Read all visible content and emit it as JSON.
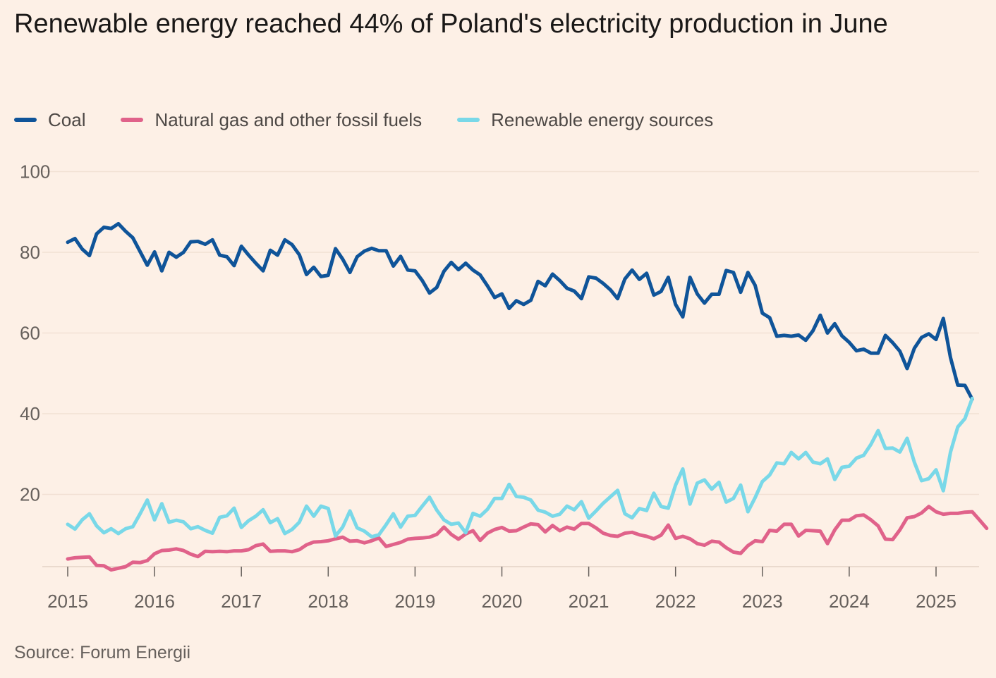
{
  "title": "Renewable energy reached 44% of Poland's electricity production in June",
  "source": "Source: Forum Energii",
  "colors": {
    "coal": "#0f5499",
    "gas": "#e0628a",
    "renewables": "#79d8e8",
    "background": "#fdf0e6",
    "grid": "#f2e1d4"
  },
  "chart_data": {
    "type": "line",
    "title": "Renewable energy reached 44% of Poland's electricity production in June",
    "xlabel": "",
    "ylabel": "",
    "x_start": "2015-01",
    "x_end": "2025-06",
    "frequency": "monthly",
    "xticks": [
      "2015",
      "2016",
      "2017",
      "2018",
      "2019",
      "2020",
      "2021",
      "2022",
      "2023",
      "2024",
      "2025"
    ],
    "yticks": [
      "20",
      "40",
      "60",
      "80",
      "100"
    ],
    "ylim": [
      0,
      100
    ],
    "grid": true,
    "legend_position": "top-left",
    "series": [
      {
        "name": "Coal",
        "color": "#0f5499",
        "values": [
          82.5,
          83.4,
          80.8,
          79.2,
          84.6,
          86.2,
          85.9,
          87.1,
          85.2,
          83.6,
          80.2,
          76.8,
          80.1,
          75.4,
          80.0,
          78.8,
          80.0,
          82.6,
          82.7,
          82.0,
          83.1,
          79.3,
          78.9,
          76.7,
          81.5,
          79.3,
          77.3,
          75.4,
          80.5,
          79.3,
          83.1,
          81.9,
          79.4,
          74.5,
          76.3,
          74.0,
          74.3,
          80.9,
          78.3,
          75.0,
          78.9,
          80.3,
          81.0,
          80.4,
          80.4,
          76.6,
          79.0,
          75.6,
          75.4,
          73.0,
          69.9,
          71.3,
          75.3,
          77.5,
          75.7,
          77.3,
          75.6,
          74.4,
          71.7,
          68.8,
          69.7,
          66.1,
          68.0,
          67.1,
          68.1,
          72.8,
          71.7,
          74.6,
          73.0,
          71.1,
          70.4,
          68.5,
          73.9,
          73.6,
          72.3,
          70.7,
          68.5,
          73.4,
          75.6,
          73.3,
          74.8,
          69.4,
          70.3,
          73.8,
          67.1,
          64.0,
          73.8,
          69.7,
          67.4,
          69.6,
          69.6,
          75.5,
          75.0,
          70.1,
          75.0,
          71.8,
          64.9,
          63.8,
          59.2,
          59.4,
          59.2,
          59.5,
          58.2,
          60.6,
          64.4,
          60.0,
          62.3,
          59.3,
          57.7,
          55.6,
          56.0,
          55.0,
          55.0,
          59.4,
          57.6,
          55.5,
          51.2,
          56.2,
          58.9,
          59.8,
          58.4,
          63.6,
          53.9,
          47.1,
          47.0,
          43.6
        ]
      },
      {
        "name": "Natural gas and other fossil fuels",
        "color": "#e0628a",
        "values": [
          4.0,
          4.3,
          4.4,
          4.5,
          2.4,
          2.3,
          1.3,
          1.7,
          2.1,
          3.2,
          3.1,
          3.6,
          5.3,
          6.1,
          6.2,
          6.5,
          6.1,
          5.2,
          4.6,
          5.9,
          5.8,
          5.9,
          5.8,
          6.0,
          6.0,
          6.3,
          7.3,
          7.7,
          5.9,
          6.0,
          6.0,
          5.8,
          6.3,
          7.5,
          8.2,
          8.3,
          8.5,
          9.0,
          9.4,
          8.4,
          8.5,
          8.0,
          8.5,
          9.2,
          7.1,
          7.6,
          8.1,
          8.9,
          9.1,
          9.2,
          9.4,
          10.1,
          11.9,
          10.1,
          8.9,
          10.2,
          11.0,
          8.6,
          10.4,
          11.3,
          11.8,
          10.9,
          11.0,
          11.9,
          12.7,
          12.5,
          10.7,
          12.3,
          11.0,
          11.9,
          11.4,
          12.8,
          12.8,
          11.7,
          10.4,
          9.8,
          9.6,
          10.4,
          10.6,
          10.0,
          9.6,
          9.0,
          9.9,
          12.4,
          9.1,
          9.6,
          9.0,
          7.8,
          7.4,
          8.4,
          8.2,
          6.8,
          5.7,
          5.4,
          7.3,
          8.5,
          8.3,
          11.1,
          10.9,
          12.6,
          12.6,
          9.7,
          11.1,
          11.0,
          10.9,
          7.8,
          11.2,
          13.6,
          13.6,
          14.7,
          14.9,
          13.7,
          12.2,
          8.9,
          8.8,
          11.2,
          14.2,
          14.5,
          15.4,
          17.0,
          15.7,
          15.1,
          15.3,
          15.3,
          15.6,
          15.7,
          13.7,
          11.6
        ]
      },
      {
        "name": "Renewable energy sources",
        "color": "#79d8e8",
        "values": [
          12.6,
          11.4,
          13.7,
          15.2,
          12.2,
          10.5,
          11.5,
          10.3,
          11.5,
          12.0,
          15.2,
          18.6,
          13.7,
          17.7,
          13.1,
          13.6,
          13.2,
          11.5,
          12.0,
          11.1,
          10.4,
          14.3,
          14.7,
          16.6,
          11.8,
          13.5,
          14.6,
          16.2,
          13.0,
          14.0,
          10.3,
          11.3,
          13.1,
          17.1,
          14.6,
          17.1,
          16.5,
          9.7,
          11.9,
          15.9,
          11.7,
          10.9,
          9.5,
          10.0,
          12.5,
          15.2,
          11.9,
          14.6,
          14.8,
          17.1,
          19.3,
          16.1,
          13.7,
          12.6,
          12.9,
          10.5,
          15.3,
          14.6,
          16.3,
          19.0,
          19.0,
          22.5,
          19.5,
          19.3,
          18.6,
          16.1,
          15.6,
          14.6,
          15.1,
          17.1,
          16.2,
          18.2,
          14.1,
          15.9,
          17.8,
          19.4,
          21.0,
          15.2,
          14.2,
          16.5,
          16.0,
          20.3,
          17.0,
          16.6,
          22.3,
          26.3,
          17.6,
          22.8,
          23.6,
          21.3,
          23.0,
          18.1,
          19.0,
          22.3,
          15.7,
          19.2,
          23.2,
          24.8,
          27.8,
          27.6,
          30.4,
          28.8,
          30.4,
          28.0,
          27.6,
          28.8,
          23.7,
          26.7,
          27.0,
          29.0,
          29.7,
          32.4,
          35.8,
          31.4,
          31.5,
          30.5,
          33.9,
          28.0,
          23.4,
          23.9,
          26.1,
          20.9,
          30.5,
          36.7,
          38.8,
          43.8
        ]
      }
    ]
  }
}
